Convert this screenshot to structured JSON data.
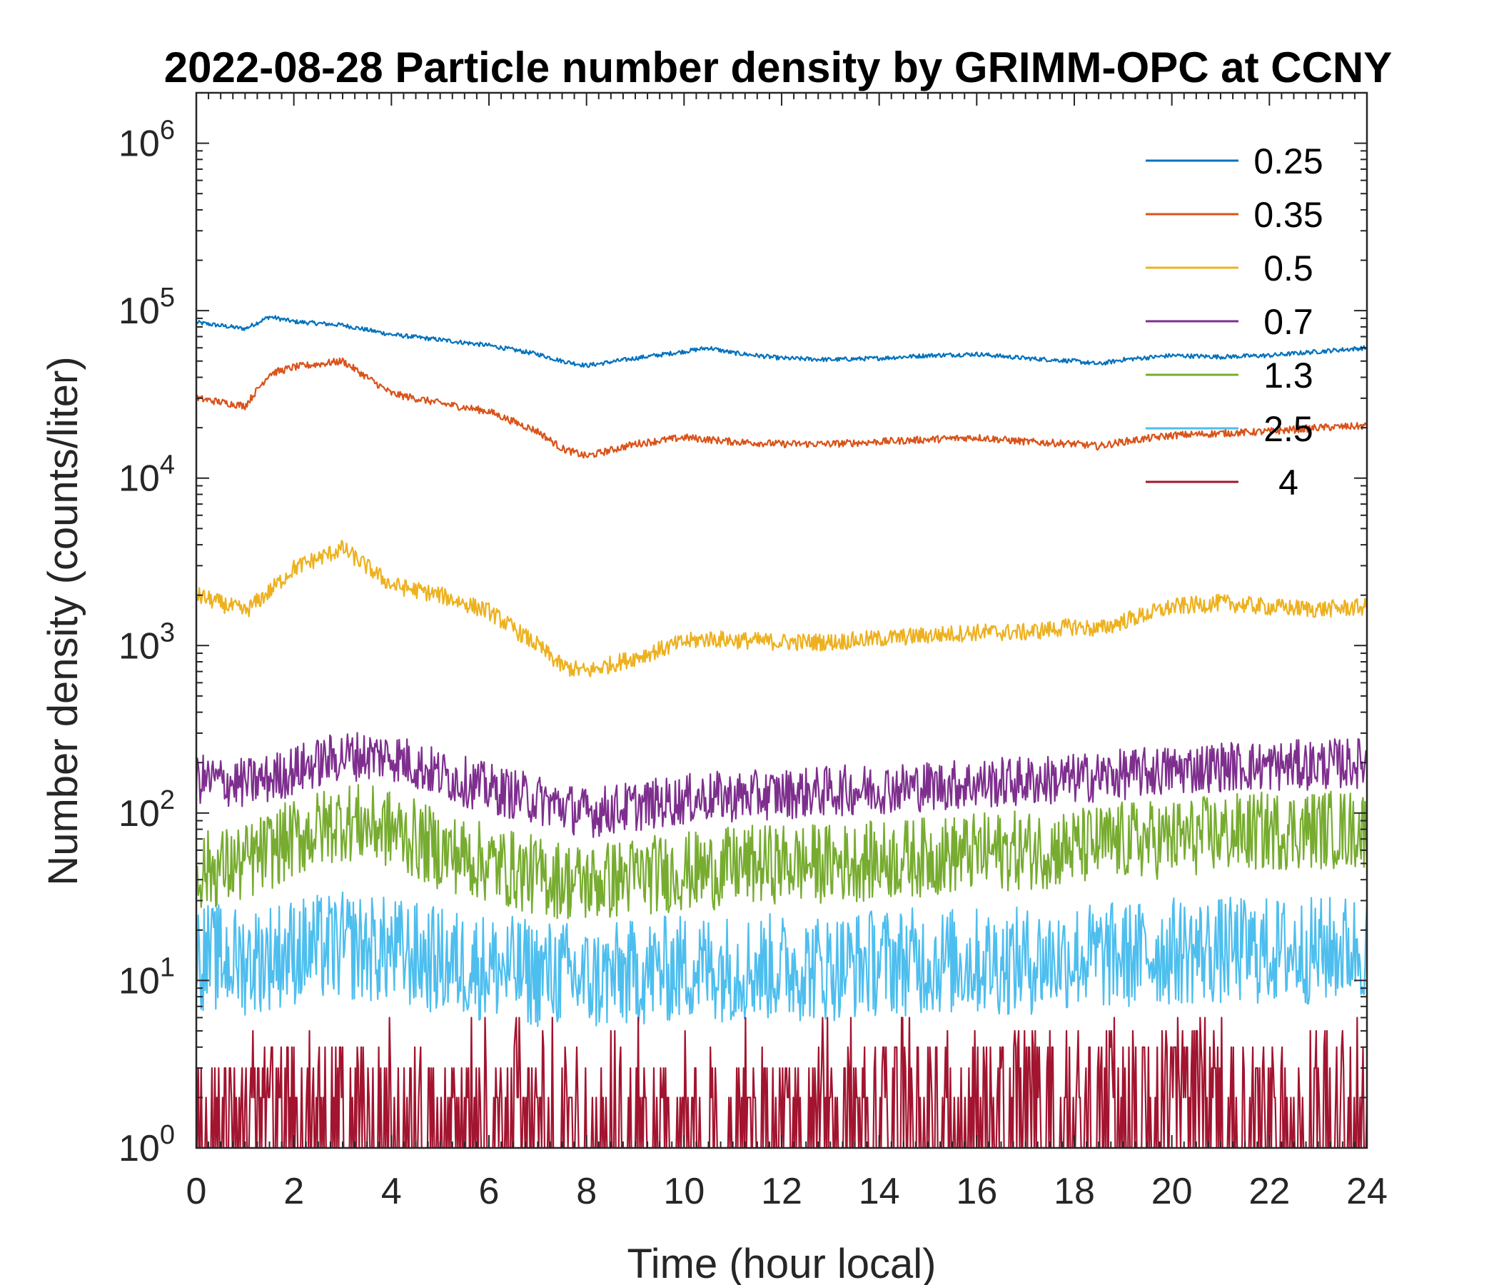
{
  "chart_data": {
    "type": "line",
    "title": "2022-08-28 Particle number density by GRIMM-OPC at CCNY",
    "xlabel": "Time (hour local)",
    "ylabel": "Number density (counts/liter)",
    "xlim": [
      0,
      24
    ],
    "ylim": [
      1,
      2000000
    ],
    "yscale": "log",
    "xticks": [
      0,
      2,
      4,
      6,
      8,
      10,
      12,
      14,
      16,
      18,
      20,
      22,
      24
    ],
    "yticks": [
      {
        "value": 1,
        "base": "10",
        "exp": "0"
      },
      {
        "value": 10,
        "base": "10",
        "exp": "1"
      },
      {
        "value": 100,
        "base": "10",
        "exp": "2"
      },
      {
        "value": 1000,
        "base": "10",
        "exp": "3"
      },
      {
        "value": 10000,
        "base": "10",
        "exp": "4"
      },
      {
        "value": 100000,
        "base": "10",
        "exp": "5"
      },
      {
        "value": 1000000,
        "base": "10",
        "exp": "6"
      }
    ],
    "legend_position": "top-right",
    "x": [
      0,
      1,
      1.5,
      2,
      3,
      4,
      5,
      6,
      7,
      7.5,
      8,
      9,
      10,
      10.5,
      11,
      12,
      13,
      14,
      15,
      16,
      17,
      18,
      18.5,
      19,
      20,
      21,
      22,
      23,
      24
    ],
    "series": [
      {
        "name": "0.25",
        "color": "#0072BD",
        "values": [
          85000,
          78000,
          92000,
          86000,
          82000,
          72000,
          67000,
          62000,
          55000,
          50000,
          47000,
          52000,
          57000,
          60000,
          56000,
          52000,
          51000,
          52000,
          54000,
          55000,
          52000,
          50000,
          48000,
          51000,
          54000,
          53000,
          54000,
          57000,
          60000
        ]
      },
      {
        "name": "0.35",
        "color": "#D95319",
        "values": [
          30000,
          27000,
          42000,
          46000,
          50000,
          32000,
          28000,
          25000,
          19000,
          15000,
          13500,
          16000,
          17500,
          17000,
          16500,
          16000,
          16000,
          16500,
          17000,
          17500,
          16500,
          16000,
          15500,
          16500,
          18000,
          18500,
          19000,
          20000,
          20500
        ]
      },
      {
        "name": "0.5",
        "color": "#EDB120",
        "values": [
          2000,
          1600,
          2100,
          2900,
          3800,
          2300,
          2000,
          1600,
          1000,
          750,
          700,
          850,
          1050,
          1100,
          1080,
          1050,
          1050,
          1100,
          1150,
          1200,
          1200,
          1300,
          1250,
          1400,
          1700,
          1800,
          1700,
          1650,
          1700
        ]
      },
      {
        "name": "0.7",
        "color": "#7E2F8E",
        "values": [
          160,
          150,
          160,
          180,
          220,
          220,
          170,
          140,
          120,
          110,
          100,
          110,
          120,
          125,
          125,
          130,
          135,
          140,
          145,
          150,
          155,
          160,
          165,
          170,
          180,
          190,
          190,
          195,
          200
        ]
      },
      {
        "name": "1.3",
        "color": "#77AC30",
        "values": [
          45,
          50,
          60,
          70,
          90,
          80,
          60,
          50,
          42,
          40,
          38,
          42,
          45,
          45,
          48,
          50,
          50,
          52,
          55,
          58,
          60,
          62,
          65,
          68,
          70,
          75,
          78,
          80,
          80
        ]
      },
      {
        "name": "2.5",
        "color": "#4DBEEE",
        "values": [
          14,
          13,
          14,
          15,
          16,
          15,
          13,
          12,
          11,
          11,
          10,
          11,
          12,
          12,
          12,
          12,
          12,
          13,
          13,
          13,
          13,
          14,
          14,
          14,
          15,
          15,
          15,
          15,
          16
        ]
      },
      {
        "name": "4",
        "color": "#A2142F",
        "values": [
          1.8,
          2,
          2,
          1.9,
          2.2,
          2,
          1.8,
          1.6,
          1.5,
          1.4,
          1.4,
          1.5,
          1.6,
          1.6,
          1.6,
          1.7,
          1.8,
          2,
          2.2,
          2.4,
          2.6,
          2.8,
          3,
          2.8,
          2.6,
          2.4,
          2.2,
          2,
          2
        ]
      }
    ]
  }
}
